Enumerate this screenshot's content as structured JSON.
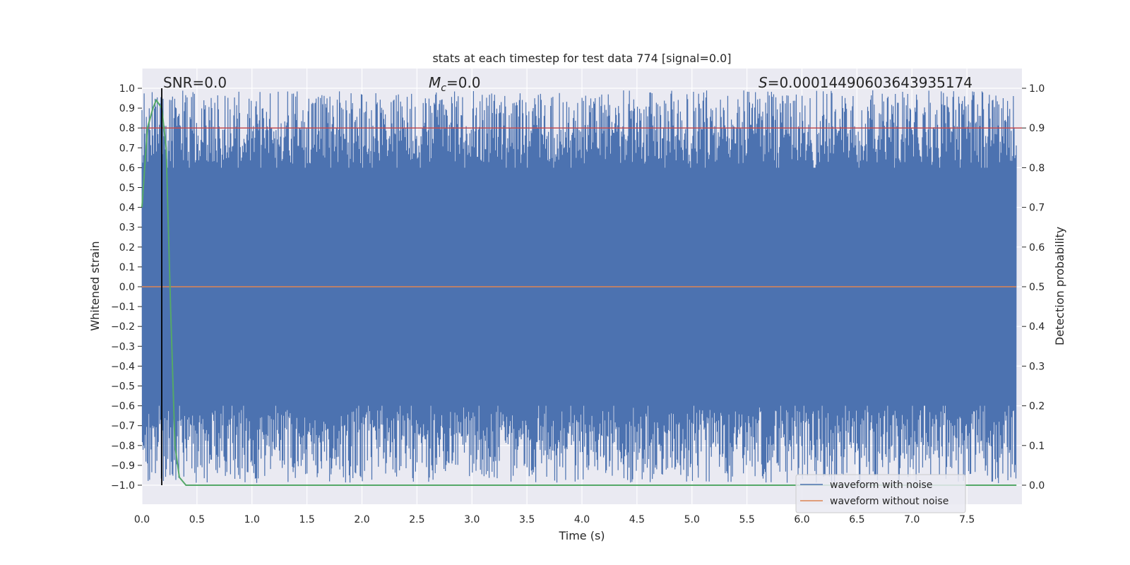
{
  "chart_data": {
    "type": "line",
    "title": "stats at each timestep for test data 774 [signal=0.0]",
    "xlabel": "Time (s)",
    "ylabel": "Whitened strain",
    "y2label": "Detection probability",
    "xlim": [
      0.0,
      8.0
    ],
    "ylim": [
      -1.0,
      1.0
    ],
    "y2lim": [
      0.0,
      1.0
    ],
    "x_ticks": [
      "0.0",
      "0.5",
      "1.0",
      "1.5",
      "2.0",
      "2.5",
      "3.0",
      "3.5",
      "4.0",
      "4.5",
      "5.0",
      "5.5",
      "6.0",
      "6.5",
      "7.0",
      "7.5"
    ],
    "y_ticks": [
      "1.0",
      "0.9",
      "0.8",
      "0.7",
      "0.6",
      "0.5",
      "0.4",
      "0.3",
      "0.2",
      "0.1",
      "0.0",
      "−0.1",
      "−0.2",
      "−0.3",
      "−0.4",
      "−0.5",
      "−0.6",
      "−0.7",
      "−0.8",
      "−0.9",
      "−1.0"
    ],
    "y2_ticks": [
      "1.0",
      "0.9",
      "0.8",
      "0.7",
      "0.6",
      "0.5",
      "0.4",
      "0.3",
      "0.2",
      "0.1",
      "0.0"
    ],
    "grid": true,
    "legend_position": "lower-right",
    "annotations": {
      "snr": "SNR=0.0",
      "mc_symbol": "M",
      "mc_sub": "c",
      "mc_value": "=0.0",
      "s_symbol": "S",
      "s_value": "=0.00014490603643935174"
    },
    "series": [
      {
        "name": "waveform with noise",
        "color": "#4c72b0",
        "style": "dense noise band between about -0.95 and 0.95"
      },
      {
        "name": "waveform without noise",
        "color": "#dd8452",
        "y": [
          0.0,
          0.0
        ]
      },
      {
        "color": "#c44e52",
        "axis": "y2",
        "y": [
          0.9,
          0.9
        ]
      },
      {
        "color": "#55a868",
        "axis": "y2",
        "x": [
          0.0,
          0.05,
          0.1,
          0.13,
          0.18,
          0.22,
          0.26,
          0.3,
          0.34,
          0.4,
          7.95
        ],
        "y": [
          0.7,
          0.9,
          0.95,
          0.97,
          0.95,
          0.85,
          0.45,
          0.1,
          0.02,
          0.0,
          0.0
        ]
      },
      {
        "color": "#000000",
        "style": "vertical marker",
        "x": [
          0.18,
          0.18
        ]
      }
    ]
  }
}
